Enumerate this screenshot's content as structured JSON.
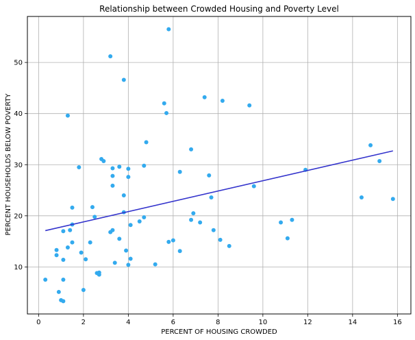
{
  "chart_data": {
    "type": "scatter",
    "title": "Relationship between Crowded Housing and Poverty Level",
    "xlabel": "PERCENT OF HOUSING CROWDED",
    "ylabel": "PERCENT HOUSEHOLDS BELOW POVERTY",
    "xlim": [
      -0.5,
      16.6
    ],
    "ylim": [
      0.8,
      59.0
    ],
    "xticks": [
      0,
      2,
      4,
      6,
      8,
      10,
      12,
      14,
      16
    ],
    "yticks": [
      10,
      20,
      30,
      40,
      50
    ],
    "grid": true,
    "colors": {
      "points": "#33aaee",
      "trend": "#3333cc"
    },
    "trendline": {
      "x": [
        0.3,
        15.8
      ],
      "y": [
        17.1,
        32.7
      ]
    },
    "points": [
      {
        "x": 0.3,
        "y": 7.5
      },
      {
        "x": 0.8,
        "y": 13.3
      },
      {
        "x": 0.8,
        "y": 12.3
      },
      {
        "x": 0.9,
        "y": 5.1
      },
      {
        "x": 1.0,
        "y": 3.5
      },
      {
        "x": 1.1,
        "y": 3.3
      },
      {
        "x": 1.1,
        "y": 7.5
      },
      {
        "x": 1.1,
        "y": 11.4
      },
      {
        "x": 1.1,
        "y": 17.0
      },
      {
        "x": 1.3,
        "y": 39.6
      },
      {
        "x": 1.3,
        "y": 13.8
      },
      {
        "x": 1.4,
        "y": 17.2
      },
      {
        "x": 1.5,
        "y": 14.8
      },
      {
        "x": 1.5,
        "y": 18.3
      },
      {
        "x": 1.5,
        "y": 21.6
      },
      {
        "x": 1.8,
        "y": 29.5
      },
      {
        "x": 1.9,
        "y": 12.8
      },
      {
        "x": 2.0,
        "y": 5.5
      },
      {
        "x": 2.1,
        "y": 11.5
      },
      {
        "x": 2.3,
        "y": 14.8
      },
      {
        "x": 2.4,
        "y": 21.7
      },
      {
        "x": 2.5,
        "y": 19.8
      },
      {
        "x": 2.6,
        "y": 8.8
      },
      {
        "x": 2.7,
        "y": 8.5
      },
      {
        "x": 2.7,
        "y": 8.9
      },
      {
        "x": 2.8,
        "y": 31.1
      },
      {
        "x": 2.9,
        "y": 30.7
      },
      {
        "x": 3.2,
        "y": 51.2
      },
      {
        "x": 3.2,
        "y": 16.8
      },
      {
        "x": 3.3,
        "y": 29.3
      },
      {
        "x": 3.3,
        "y": 27.8
      },
      {
        "x": 3.3,
        "y": 25.9
      },
      {
        "x": 3.3,
        "y": 17.2
      },
      {
        "x": 3.4,
        "y": 10.8
      },
      {
        "x": 3.6,
        "y": 29.6
      },
      {
        "x": 3.6,
        "y": 15.5
      },
      {
        "x": 3.8,
        "y": 46.6
      },
      {
        "x": 3.8,
        "y": 24.0
      },
      {
        "x": 3.8,
        "y": 20.7
      },
      {
        "x": 3.9,
        "y": 13.2
      },
      {
        "x": 4.0,
        "y": 29.2
      },
      {
        "x": 4.0,
        "y": 27.6
      },
      {
        "x": 4.0,
        "y": 10.4
      },
      {
        "x": 4.1,
        "y": 18.2
      },
      {
        "x": 4.1,
        "y": 11.6
      },
      {
        "x": 4.5,
        "y": 18.9
      },
      {
        "x": 4.7,
        "y": 29.8
      },
      {
        "x": 4.7,
        "y": 19.7
      },
      {
        "x": 4.8,
        "y": 34.4
      },
      {
        "x": 5.2,
        "y": 10.5
      },
      {
        "x": 5.6,
        "y": 42.0
      },
      {
        "x": 5.7,
        "y": 40.1
      },
      {
        "x": 5.8,
        "y": 56.5
      },
      {
        "x": 5.8,
        "y": 14.9
      },
      {
        "x": 6.0,
        "y": 15.2
      },
      {
        "x": 6.3,
        "y": 28.6
      },
      {
        "x": 6.3,
        "y": 13.1
      },
      {
        "x": 6.8,
        "y": 33.0
      },
      {
        "x": 6.8,
        "y": 19.2
      },
      {
        "x": 6.9,
        "y": 20.5
      },
      {
        "x": 7.2,
        "y": 18.7
      },
      {
        "x": 7.4,
        "y": 43.2
      },
      {
        "x": 7.6,
        "y": 27.9
      },
      {
        "x": 7.7,
        "y": 23.6
      },
      {
        "x": 7.8,
        "y": 17.2
      },
      {
        "x": 8.1,
        "y": 15.3
      },
      {
        "x": 8.2,
        "y": 42.5
      },
      {
        "x": 8.5,
        "y": 14.1
      },
      {
        "x": 9.4,
        "y": 41.6
      },
      {
        "x": 9.6,
        "y": 25.8
      },
      {
        "x": 10.8,
        "y": 18.7
      },
      {
        "x": 11.1,
        "y": 15.6
      },
      {
        "x": 11.3,
        "y": 19.2
      },
      {
        "x": 11.9,
        "y": 29.0
      },
      {
        "x": 14.4,
        "y": 23.6
      },
      {
        "x": 14.8,
        "y": 33.8
      },
      {
        "x": 15.2,
        "y": 30.7
      },
      {
        "x": 15.8,
        "y": 23.3
      }
    ]
  }
}
